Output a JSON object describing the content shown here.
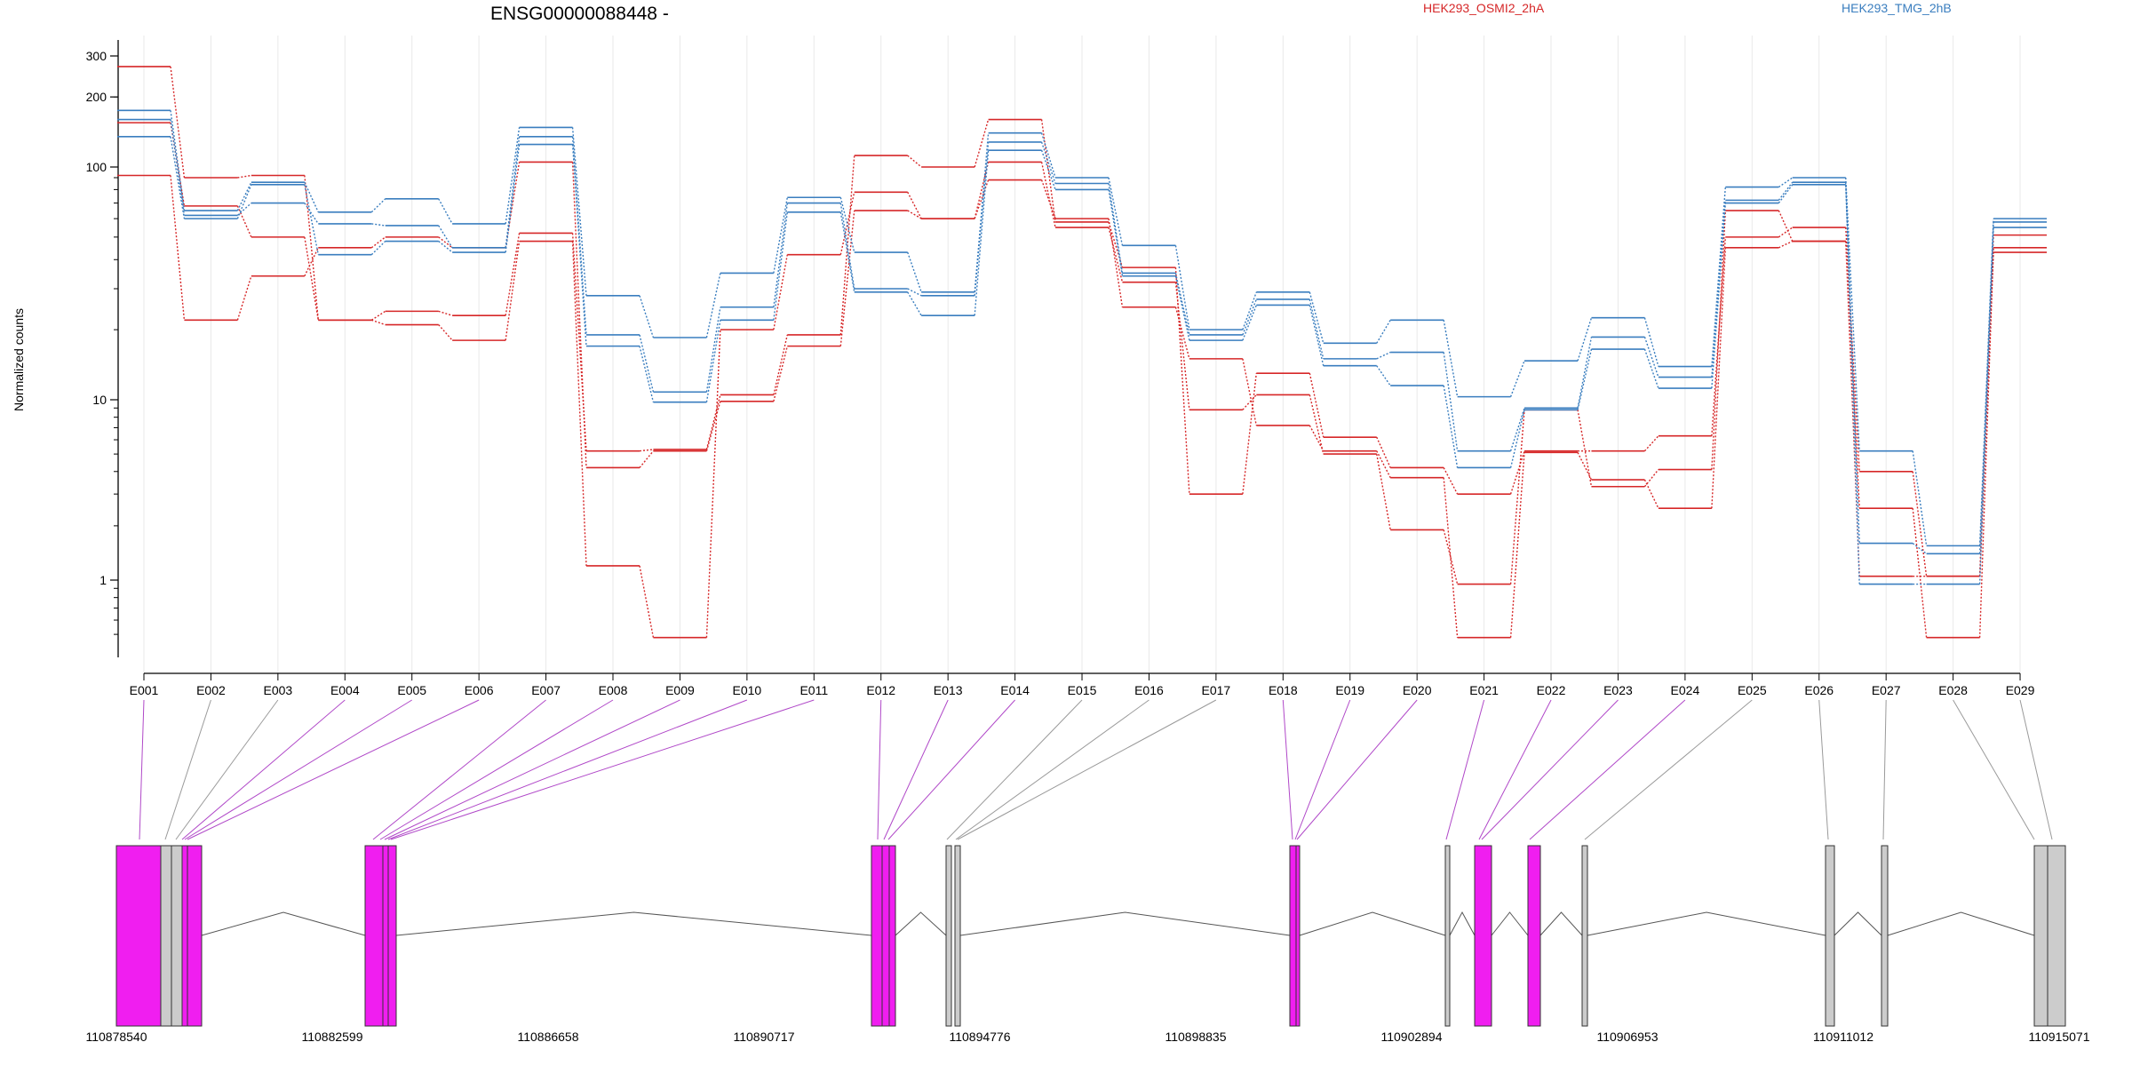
{
  "chart_data": {
    "type": "line",
    "title": "ENSG00000088448 -",
    "ylabel": "Normalized counts",
    "yscale": "log",
    "ylim": [
      0.5,
      330
    ],
    "y_ticks": [
      1,
      10,
      100,
      200,
      300
    ],
    "grid_x": true,
    "categories": [
      "E001",
      "E002",
      "E003",
      "E004",
      "E005",
      "E006",
      "E007",
      "E008",
      "E009",
      "E010",
      "E011",
      "E012",
      "E013",
      "E014",
      "E015",
      "E016",
      "E017",
      "E018",
      "E019",
      "E020",
      "E021",
      "E022",
      "E023",
      "E024",
      "E025",
      "E026",
      "E027",
      "E028",
      "E029"
    ],
    "legend": [
      {
        "label": "HEK293_OSMI2_2hA",
        "color": "#d62728"
      },
      {
        "label": "HEK293_TMG_2hB",
        "color": "#3a7ebf"
      }
    ],
    "series": [
      {
        "group": "HEK293_OSMI2_2hA",
        "color": "#d62728",
        "values": [
          270,
          90,
          92,
          22,
          24,
          23,
          52,
          5.2,
          5.3,
          10.5,
          19,
          112,
          100,
          160,
          58,
          37,
          3.0,
          13,
          6.2,
          4.2,
          3.0,
          5.2,
          5.2,
          6.3,
          50,
          55,
          4.0,
          1.05,
          51
        ]
      },
      {
        "group": "HEK293_OSMI2_2hA",
        "color": "#d62728",
        "values": [
          155,
          68,
          50,
          22,
          21,
          18,
          48,
          1.2,
          0.48,
          20,
          42,
          78,
          60,
          88,
          60,
          25,
          15,
          7.2,
          5.2,
          3.7,
          0.48,
          5.1,
          3.6,
          2.5,
          45,
          48,
          2.5,
          0.48,
          45
        ]
      },
      {
        "group": "HEK293_OSMI2_2hA",
        "color": "#d62728",
        "values": [
          92,
          22,
          34,
          45,
          50,
          45,
          105,
          4.2,
          5.2,
          9.8,
          17,
          65,
          60,
          105,
          55,
          32,
          8.8,
          10.5,
          5.0,
          1.9,
          0.95,
          8.8,
          3.3,
          4.1,
          65,
          48,
          1.05,
          1.05,
          43
        ]
      },
      {
        "group": "HEK293_TMG_2hB",
        "color": "#3a7ebf",
        "values": [
          175,
          65,
          86,
          64,
          73,
          57,
          148,
          28,
          18.5,
          35,
          74,
          43,
          29,
          140,
          90,
          46,
          20,
          29,
          17.5,
          22,
          10.3,
          14.7,
          22.5,
          13.9,
          82,
          90,
          5.2,
          1.55,
          60
        ]
      },
      {
        "group": "HEK293_TMG_2hB",
        "color": "#3a7ebf",
        "values": [
          160,
          62,
          70,
          57,
          56,
          45,
          135,
          19,
          10.8,
          25,
          70,
          30,
          28,
          128,
          85,
          35,
          19,
          27,
          15,
          16,
          5.2,
          9.0,
          18.6,
          12.5,
          72,
          86,
          1.6,
          1.4,
          58
        ]
      },
      {
        "group": "HEK293_TMG_2hB",
        "color": "#3a7ebf",
        "values": [
          135,
          60,
          84,
          42,
          48,
          43,
          125,
          17,
          9.7,
          22,
          64,
          29,
          23,
          118,
          80,
          34,
          18,
          25.5,
          14,
          11.5,
          4.2,
          8.8,
          16.5,
          11.2,
          70,
          84,
          0.95,
          0.95,
          55
        ]
      }
    ],
    "gene_model": {
      "start_label": "110878540",
      "coordinate_labels": [
        "110878540",
        "110882599",
        "110886658",
        "110890717",
        "110894776",
        "110898835",
        "110902894",
        "110906953",
        "110911012",
        "110915071"
      ],
      "exon_colors": {
        "significant": "#f01ef0",
        "normal": "#cccccc"
      }
    }
  }
}
